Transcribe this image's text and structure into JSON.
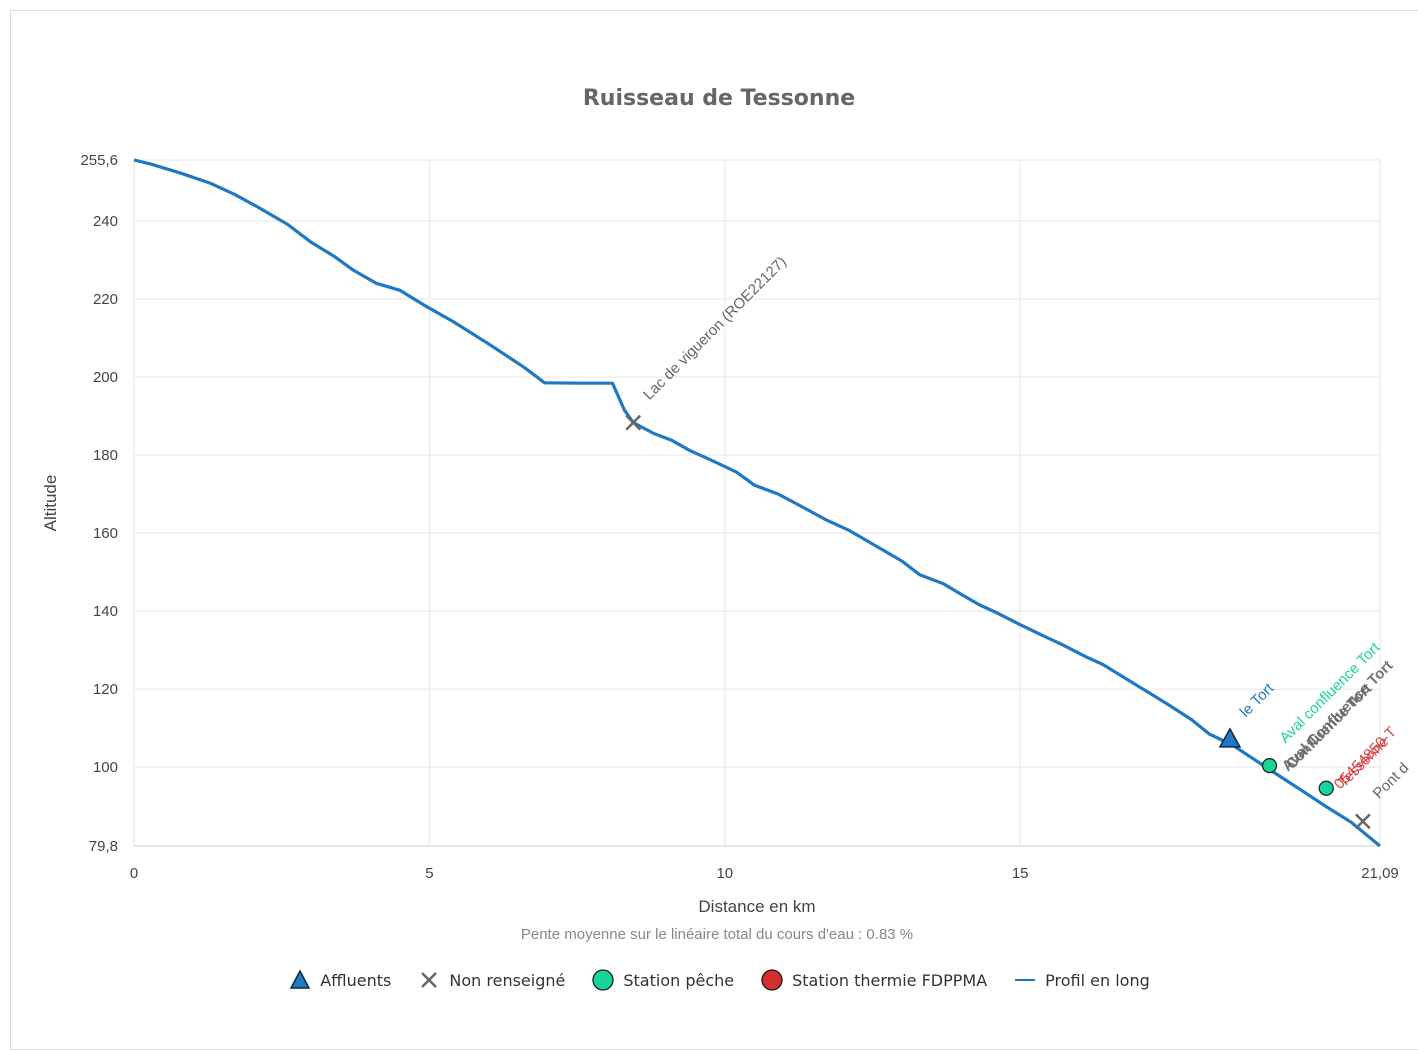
{
  "chart_data": {
    "type": "line",
    "title": "Ruisseau de Tessonne",
    "xlabel": "Distance en km",
    "ylabel": "Altitude",
    "note": "Pente moyenne sur le linéaire total du cours d'eau : 0.83 %",
    "xlim": [
      0,
      21.09
    ],
    "ylim": [
      79.8,
      255.6
    ],
    "x_ticks": [
      0,
      5,
      10,
      15,
      21.09
    ],
    "x_tick_labels": [
      "0",
      "5",
      "10",
      "15",
      "21,09"
    ],
    "y_ticks": [
      79.8,
      100,
      120,
      140,
      160,
      180,
      200,
      220,
      240,
      255.6
    ],
    "y_tick_labels": [
      "79,8",
      "100",
      "120",
      "140",
      "160",
      "180",
      "200",
      "220",
      "240",
      "255,6"
    ],
    "grid": true,
    "series": [
      {
        "name": "Profil en long",
        "color": "#1f78c1",
        "x": [
          0,
          0.3,
          0.8,
          1.3,
          1.7,
          2.1,
          2.6,
          3.0,
          3.4,
          3.7,
          4.1,
          4.5,
          4.9,
          5.4,
          6.0,
          6.6,
          6.95,
          7.6,
          8.1,
          8.3,
          8.45,
          8.8,
          9.1,
          9.4,
          9.8,
          10.2,
          10.5,
          10.9,
          11.3,
          11.7,
          12.1,
          12.5,
          13.0,
          13.3,
          13.7,
          14.0,
          14.3,
          14.6,
          15.0,
          15.4,
          15.7,
          16.1,
          16.4,
          16.8,
          17.1,
          17.5,
          17.9,
          18.2,
          18.6,
          19.0,
          19.4,
          19.8,
          20.2,
          20.6,
          21.09
        ],
        "y": [
          255.6,
          254.5,
          252.2,
          249.6,
          246.8,
          243.5,
          239.1,
          234.5,
          230.8,
          227.5,
          224.0,
          222.2,
          218.5,
          214.2,
          208.5,
          202.5,
          198.5,
          198.4,
          198.4,
          191.5,
          188.3,
          185.5,
          183.8,
          181.2,
          178.5,
          175.6,
          172.3,
          170.0,
          166.8,
          163.5,
          160.7,
          157.2,
          152.8,
          149.3,
          147.0,
          144.3,
          141.7,
          139.6,
          136.5,
          133.6,
          131.5,
          128.4,
          126.3,
          122.6,
          119.8,
          116.1,
          112.2,
          108.5,
          105.6,
          101.6,
          97.6,
          93.7,
          89.7,
          85.9,
          79.8
        ]
      }
    ],
    "markers": [
      {
        "type": "Affluents",
        "x": 18.55,
        "y": 107.0,
        "label": "le Tort",
        "color": "#1f78c1"
      },
      {
        "type": "Non renseigné",
        "x": 8.45,
        "y": 188.3,
        "label": "Lac de vigueron (ROE22127)",
        "color": "#666666"
      },
      {
        "type": "Station pêche",
        "x": 19.22,
        "y": 100.4,
        "label": "Aval confluence Tort",
        "color": "#19d49a"
      },
      {
        "type": "Station pêche",
        "x": 20.18,
        "y": 94.6,
        "label": "",
        "color": "#19d49a"
      },
      {
        "type": "Non renseigné",
        "x": 20.8,
        "y": 86.1,
        "label": "Pont d",
        "color": "#666666"
      }
    ],
    "overlap_labels": [
      {
        "text": "Aval Confluence Tort",
        "color": "#666666"
      },
      {
        "text": "Confluence Tort",
        "color": "#666666"
      },
      {
        "text": "05454850-T",
        "color": "#d42f2f"
      },
      {
        "text": "Tessonne",
        "color": "#d42f2f"
      }
    ],
    "legend": [
      {
        "name": "Affluents",
        "symbol": "triangle",
        "color": "#1f78c1"
      },
      {
        "name": "Non renseigné",
        "symbol": "cross",
        "color": "#666666"
      },
      {
        "name": "Station pêche",
        "symbol": "circle",
        "color": "#19d49a"
      },
      {
        "name": "Station thermie FDPPMA",
        "symbol": "circle",
        "color": "#d42f2f"
      },
      {
        "name": "Profil en long",
        "symbol": "line",
        "color": "#1f78c1"
      }
    ]
  }
}
